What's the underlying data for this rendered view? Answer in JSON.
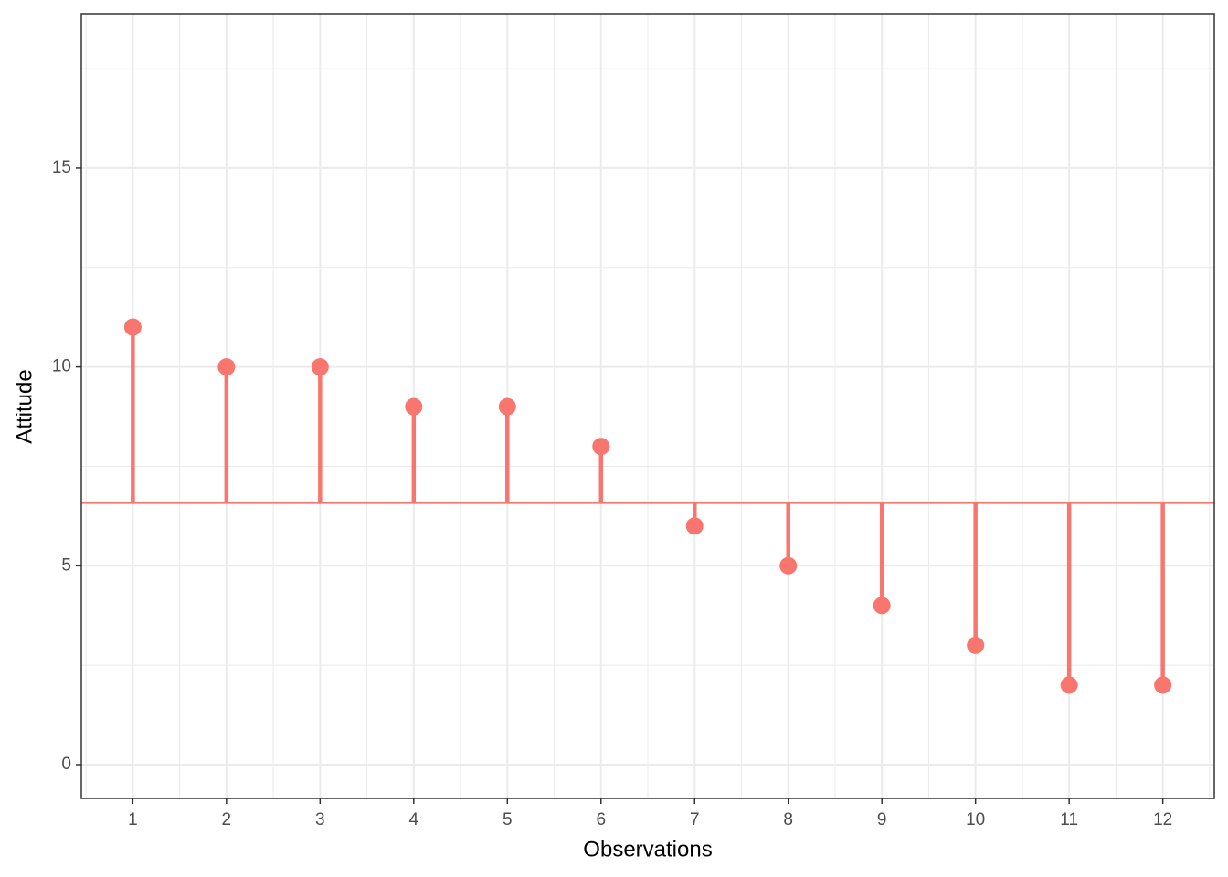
{
  "chart_data": {
    "type": "lollipop",
    "x": [
      1,
      2,
      3,
      4,
      5,
      6,
      7,
      8,
      9,
      10,
      11,
      12
    ],
    "values": [
      11,
      10,
      10,
      9,
      9,
      8,
      6,
      5,
      4,
      3,
      2,
      2
    ],
    "baseline": 6.583,
    "color": "#F8766D",
    "xlabel": "Observations",
    "ylabel": "Attitude",
    "xlim": [
      0.45,
      12.55
    ],
    "ylim": [
      -0.85,
      18.88
    ],
    "xticks": [
      1,
      2,
      3,
      4,
      5,
      6,
      7,
      8,
      9,
      10,
      11,
      12
    ],
    "yticks": [
      0,
      5,
      10,
      15
    ],
    "grid": true
  }
}
